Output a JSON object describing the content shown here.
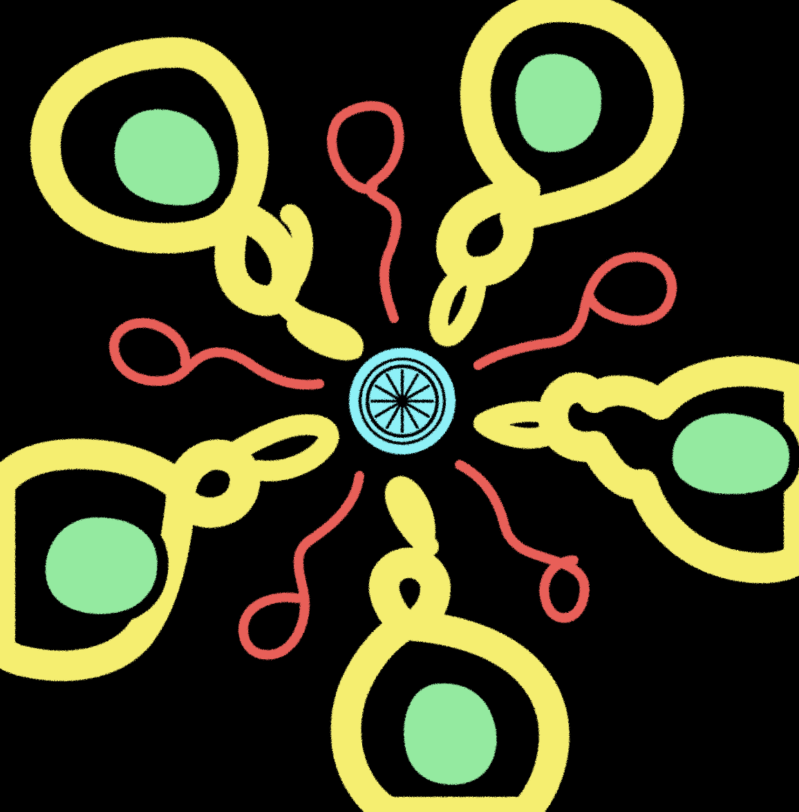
{
  "colors": {
    "background": "#000000",
    "petal_outline": "#F5EE70",
    "petal_fill": "#94EAA0",
    "tendril": "#E85E58",
    "center": "#8EF1F7"
  },
  "pattern": {
    "petal_count": 5,
    "tendril_count": 5,
    "center_spokes": 12
  }
}
